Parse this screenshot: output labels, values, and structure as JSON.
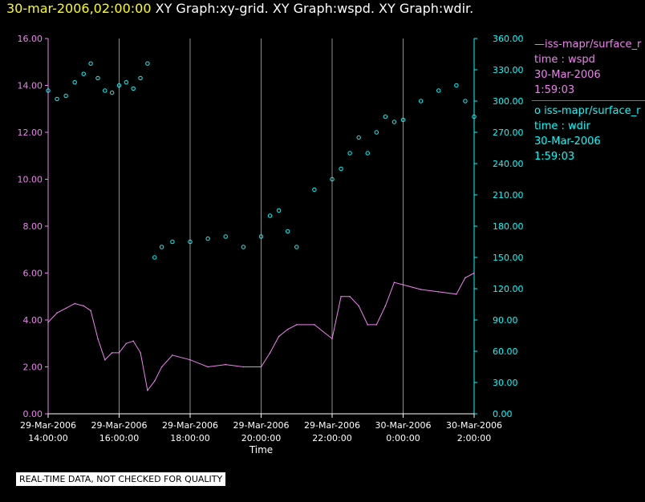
{
  "header": {
    "date_label": "30-mar-2006,02:00:00",
    "graph_titles": "XY Graph:xy-grid.  XY Graph:wspd.  XY Graph:wdir."
  },
  "legend": {
    "entries": [
      {
        "marker": "line",
        "color": "#ee82ee",
        "lines": [
          "—iss-mapr/surface_r",
          "time : wspd",
          "30-Mar-2006",
          "1:59:03"
        ]
      },
      {
        "marker": "circle",
        "color": "#00ffff",
        "lines": [
          "o  iss-mapr/surface_r",
          "time : wdir",
          "30-Mar-2006",
          "1:59:03"
        ]
      }
    ]
  },
  "footer": {
    "quality_note": "REAL-TIME DATA, NOT CHECKED FOR QUALITY"
  },
  "chart_data": {
    "type": "line",
    "xlabel": "Time",
    "x_range_hours": [
      14.0,
      26.0
    ],
    "x_ticks": [
      {
        "h": 14,
        "date": "29-Mar-2006",
        "time": "14:00:00"
      },
      {
        "h": 16,
        "date": "29-Mar-2006",
        "time": "16:00:00"
      },
      {
        "h": 18,
        "date": "29-Mar-2006",
        "time": "18:00:00"
      },
      {
        "h": 20,
        "date": "29-Mar-2006",
        "time": "20:00:00"
      },
      {
        "h": 22,
        "date": "29-Mar-2006",
        "time": "22:00:00"
      },
      {
        "h": 24,
        "date": "30-Mar-2006",
        "time": "0:00:00"
      },
      {
        "h": 26,
        "date": "30-Mar-2006",
        "time": "2:00:00"
      }
    ],
    "grid": "vertical lines at major time ticks",
    "left_axis": {
      "ylim": [
        0,
        16
      ],
      "ticks": [
        "0.00",
        "2.00",
        "4.00",
        "6.00",
        "8.00",
        "10.00",
        "12.00",
        "14.00",
        "16.00"
      ],
      "color": "#ee82ee"
    },
    "right_axis": {
      "ylim": [
        0,
        360
      ],
      "ticks": [
        "0.00",
        "30.00",
        "60.00",
        "90.00",
        "120.00",
        "150.00",
        "180.00",
        "210.00",
        "240.00",
        "270.00",
        "300.00",
        "330.00",
        "360.00"
      ],
      "color": "#00ffff"
    },
    "series": [
      {
        "name": "wspd",
        "axis": "left",
        "color": "#ee82ee",
        "style": "line",
        "points": [
          [
            14.0,
            3.9
          ],
          [
            14.25,
            4.3
          ],
          [
            14.5,
            4.5
          ],
          [
            14.75,
            4.7
          ],
          [
            15.0,
            4.6
          ],
          [
            15.2,
            4.4
          ],
          [
            15.4,
            3.2
          ],
          [
            15.6,
            2.3
          ],
          [
            15.8,
            2.6
          ],
          [
            16.0,
            2.6
          ],
          [
            16.2,
            3.0
          ],
          [
            16.4,
            3.1
          ],
          [
            16.6,
            2.6
          ],
          [
            16.8,
            1.0
          ],
          [
            17.0,
            1.4
          ],
          [
            17.2,
            2.0
          ],
          [
            17.5,
            2.5
          ],
          [
            18.0,
            2.3
          ],
          [
            18.5,
            2.0
          ],
          [
            19.0,
            2.1
          ],
          [
            19.5,
            2.0
          ],
          [
            20.0,
            2.0
          ],
          [
            20.25,
            2.6
          ],
          [
            20.5,
            3.3
          ],
          [
            20.75,
            3.6
          ],
          [
            21.0,
            3.8
          ],
          [
            21.5,
            3.8
          ],
          [
            22.0,
            3.2
          ],
          [
            22.25,
            5.0
          ],
          [
            22.5,
            5.0
          ],
          [
            22.75,
            4.6
          ],
          [
            23.0,
            3.8
          ],
          [
            23.25,
            3.8
          ],
          [
            23.5,
            4.6
          ],
          [
            23.75,
            5.6
          ],
          [
            24.0,
            5.5
          ],
          [
            24.5,
            5.3
          ],
          [
            25.0,
            5.2
          ],
          [
            25.5,
            5.1
          ],
          [
            25.75,
            5.8
          ],
          [
            26.0,
            6.0
          ]
        ]
      },
      {
        "name": "wdir",
        "axis": "right",
        "color": "#00ffff",
        "style": "scatter",
        "points": [
          [
            14.0,
            310
          ],
          [
            14.25,
            302
          ],
          [
            14.5,
            305
          ],
          [
            14.75,
            318
          ],
          [
            15.0,
            326
          ],
          [
            15.2,
            336
          ],
          [
            15.4,
            322
          ],
          [
            15.6,
            310
          ],
          [
            15.8,
            308
          ],
          [
            16.0,
            315
          ],
          [
            16.2,
            318
          ],
          [
            16.4,
            312
          ],
          [
            16.6,
            322
          ],
          [
            16.8,
            336
          ],
          [
            17.0,
            150
          ],
          [
            17.2,
            160
          ],
          [
            17.5,
            165
          ],
          [
            18.0,
            165
          ],
          [
            18.5,
            168
          ],
          [
            19.0,
            170
          ],
          [
            19.5,
            160
          ],
          [
            20.0,
            170
          ],
          [
            20.25,
            190
          ],
          [
            20.5,
            195
          ],
          [
            20.75,
            175
          ],
          [
            21.0,
            160
          ],
          [
            21.5,
            215
          ],
          [
            22.0,
            225
          ],
          [
            22.25,
            235
          ],
          [
            22.5,
            250
          ],
          [
            22.75,
            265
          ],
          [
            23.0,
            250
          ],
          [
            23.25,
            270
          ],
          [
            23.5,
            285
          ],
          [
            23.75,
            280
          ],
          [
            24.0,
            282
          ],
          [
            24.5,
            300
          ],
          [
            25.0,
            310
          ],
          [
            25.5,
            315
          ],
          [
            25.75,
            300
          ],
          [
            26.0,
            285
          ]
        ]
      }
    ]
  }
}
